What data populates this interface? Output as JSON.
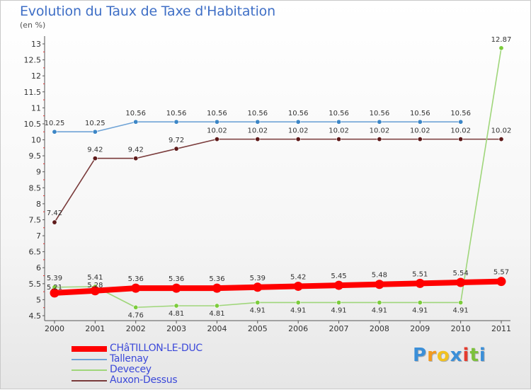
{
  "chart_data": {
    "type": "line",
    "title": "Evolution du Taux de Taxe d'Habitation",
    "unit_label": "(en %)",
    "x": [
      "2000",
      "2001",
      "2002",
      "2003",
      "2004",
      "2005",
      "2006",
      "2007",
      "2008",
      "2009",
      "2010",
      "2011"
    ],
    "ylim": [
      4.5,
      13
    ],
    "yticks": [
      "4.5",
      "5",
      "5.5",
      "6",
      "6.5",
      "7",
      "7.5",
      "8",
      "8.5",
      "9",
      "9.5",
      "10",
      "10.5",
      "11",
      "11.5",
      "12",
      "12.5",
      "13"
    ],
    "grid": false,
    "legend_position": "bottom-left",
    "series": [
      {
        "name": "CHâTILLON-LE-DUC",
        "color": "#ff0000",
        "marker_color": "#ff0000",
        "values": [
          5.21,
          5.28,
          5.36,
          5.36,
          5.36,
          5.39,
          5.42,
          5.45,
          5.48,
          5.51,
          5.54,
          5.57
        ],
        "labels": [
          "5.21",
          "5.28",
          "5.36",
          "5.36",
          "5.36",
          "5.39",
          "5.42",
          "5.45",
          "5.48",
          "5.51",
          "5.54",
          "5.57"
        ]
      },
      {
        "name": "Tallenay",
        "color": "#6fa3d6",
        "marker_color": "#3c86c6",
        "values": [
          10.25,
          10.25,
          10.56,
          10.56,
          10.56,
          10.56,
          10.56,
          10.56,
          10.56,
          10.56,
          10.56,
          null
        ],
        "labels": [
          "10.25",
          "10.25",
          "10.56",
          "10.56",
          "10.56",
          "10.56",
          "10.56",
          "10.56",
          "10.56",
          "10.56",
          "10.56",
          ""
        ]
      },
      {
        "name": "Devecey",
        "color": "#9fd67a",
        "marker_color": "#7ccc3c",
        "values": [
          5.39,
          5.41,
          4.76,
          4.81,
          4.81,
          4.91,
          4.91,
          4.91,
          4.91,
          4.91,
          4.91,
          12.87
        ],
        "labels": [
          "5.39",
          "5.41",
          "4.76",
          "4.81",
          "4.81",
          "4.91",
          "4.91",
          "4.91",
          "4.91",
          "4.91",
          "4.91",
          "12.87"
        ]
      },
      {
        "name": "Auxon-Dessus",
        "color": "#7a3b3b",
        "marker_color": "#5e1a1a",
        "values": [
          7.42,
          9.42,
          9.42,
          9.72,
          10.02,
          10.02,
          10.02,
          10.02,
          10.02,
          10.02,
          10.02,
          10.02
        ],
        "labels": [
          "7.42",
          "9.42",
          "9.42",
          "9.72",
          "10.02",
          "10.02",
          "10.02",
          "10.02",
          "10.02",
          "10.02",
          "10.02",
          "10.02"
        ]
      }
    ]
  },
  "legend": {
    "items": [
      {
        "label": "CHâTILLON-LE-DUC",
        "color": "#ff0000",
        "thickness": 8
      },
      {
        "label": "Tallenay",
        "color": "#6fa3d6",
        "thickness": 2
      },
      {
        "label": "Devecey",
        "color": "#9fd67a",
        "thickness": 2
      },
      {
        "label": "Auxon-Dessus",
        "color": "#7a3b3b",
        "thickness": 2
      }
    ]
  },
  "brand": {
    "letters": [
      "P",
      "r",
      "o",
      "x",
      "i",
      "t",
      "i"
    ],
    "colors": [
      "#3b8fd8",
      "#f29a1f",
      "#f2c21f",
      "#3b8fd8",
      "#e53b2e",
      "#7cc13c",
      "#3b8fd8"
    ]
  }
}
